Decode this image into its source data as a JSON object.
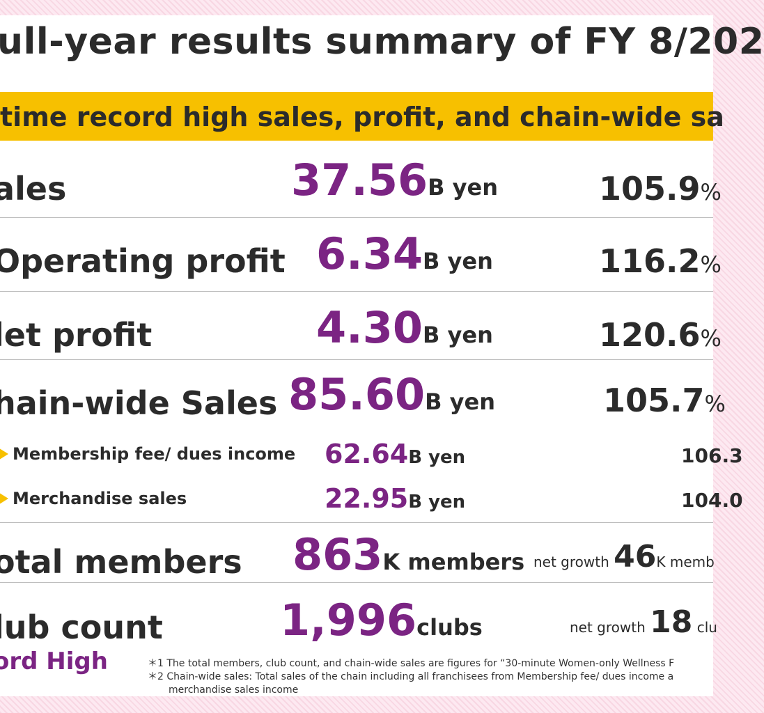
{
  "title": "ull-year results summary of FY 8/202",
  "banner": "time record high  sales, profit, and chain-wide sa",
  "rows": [
    {
      "label": "ales",
      "num": "37.56",
      "unit": "B yen",
      "pct": "105.9",
      "sym": "%"
    },
    {
      "label": "Operating profit",
      "num": "6.34",
      "unit": "B yen",
      "pct": "116.2",
      "sym": "%"
    },
    {
      "label": "let profit",
      "num": "4.30",
      "unit": "B yen",
      "pct": "120.6",
      "sym": "%"
    },
    {
      "label": "hain-wide Sales",
      "num": "85.60",
      "unit": "B yen",
      "pct": "105.7",
      "sym": "%"
    }
  ],
  "subrows": [
    {
      "label": "Membership fee/ dues income",
      "num": "62.64",
      "unit": "B yen",
      "pct": "106.3"
    },
    {
      "label": "Merchandise sales",
      "num": "22.95",
      "unit": "B yen",
      "pct": "104.0"
    }
  ],
  "members": {
    "label": "otal members",
    "num": "863",
    "unit": "K members",
    "growth_label": "net growth ",
    "growth_num": "46",
    "growth_unit": "K memb"
  },
  "clubs": {
    "label": "lub count",
    "num": "1,996",
    "unit": "clubs",
    "growth_label": "net growth ",
    "growth_num": "18",
    "growth_unit": " clu"
  },
  "record": "ord High",
  "notes": [
    "＊1 The total members, club count, and chain-wide sales are figures for “30-minute Women-only Wellness F",
    "＊2 Chain-wide sales: Total sales of the chain including all franchisees from Membership fee/ dues income a",
    "merchandise sales income"
  ],
  "colors": {
    "accent": "#7b2483",
    "banner": "#f7c000",
    "text": "#2b2b2b"
  }
}
